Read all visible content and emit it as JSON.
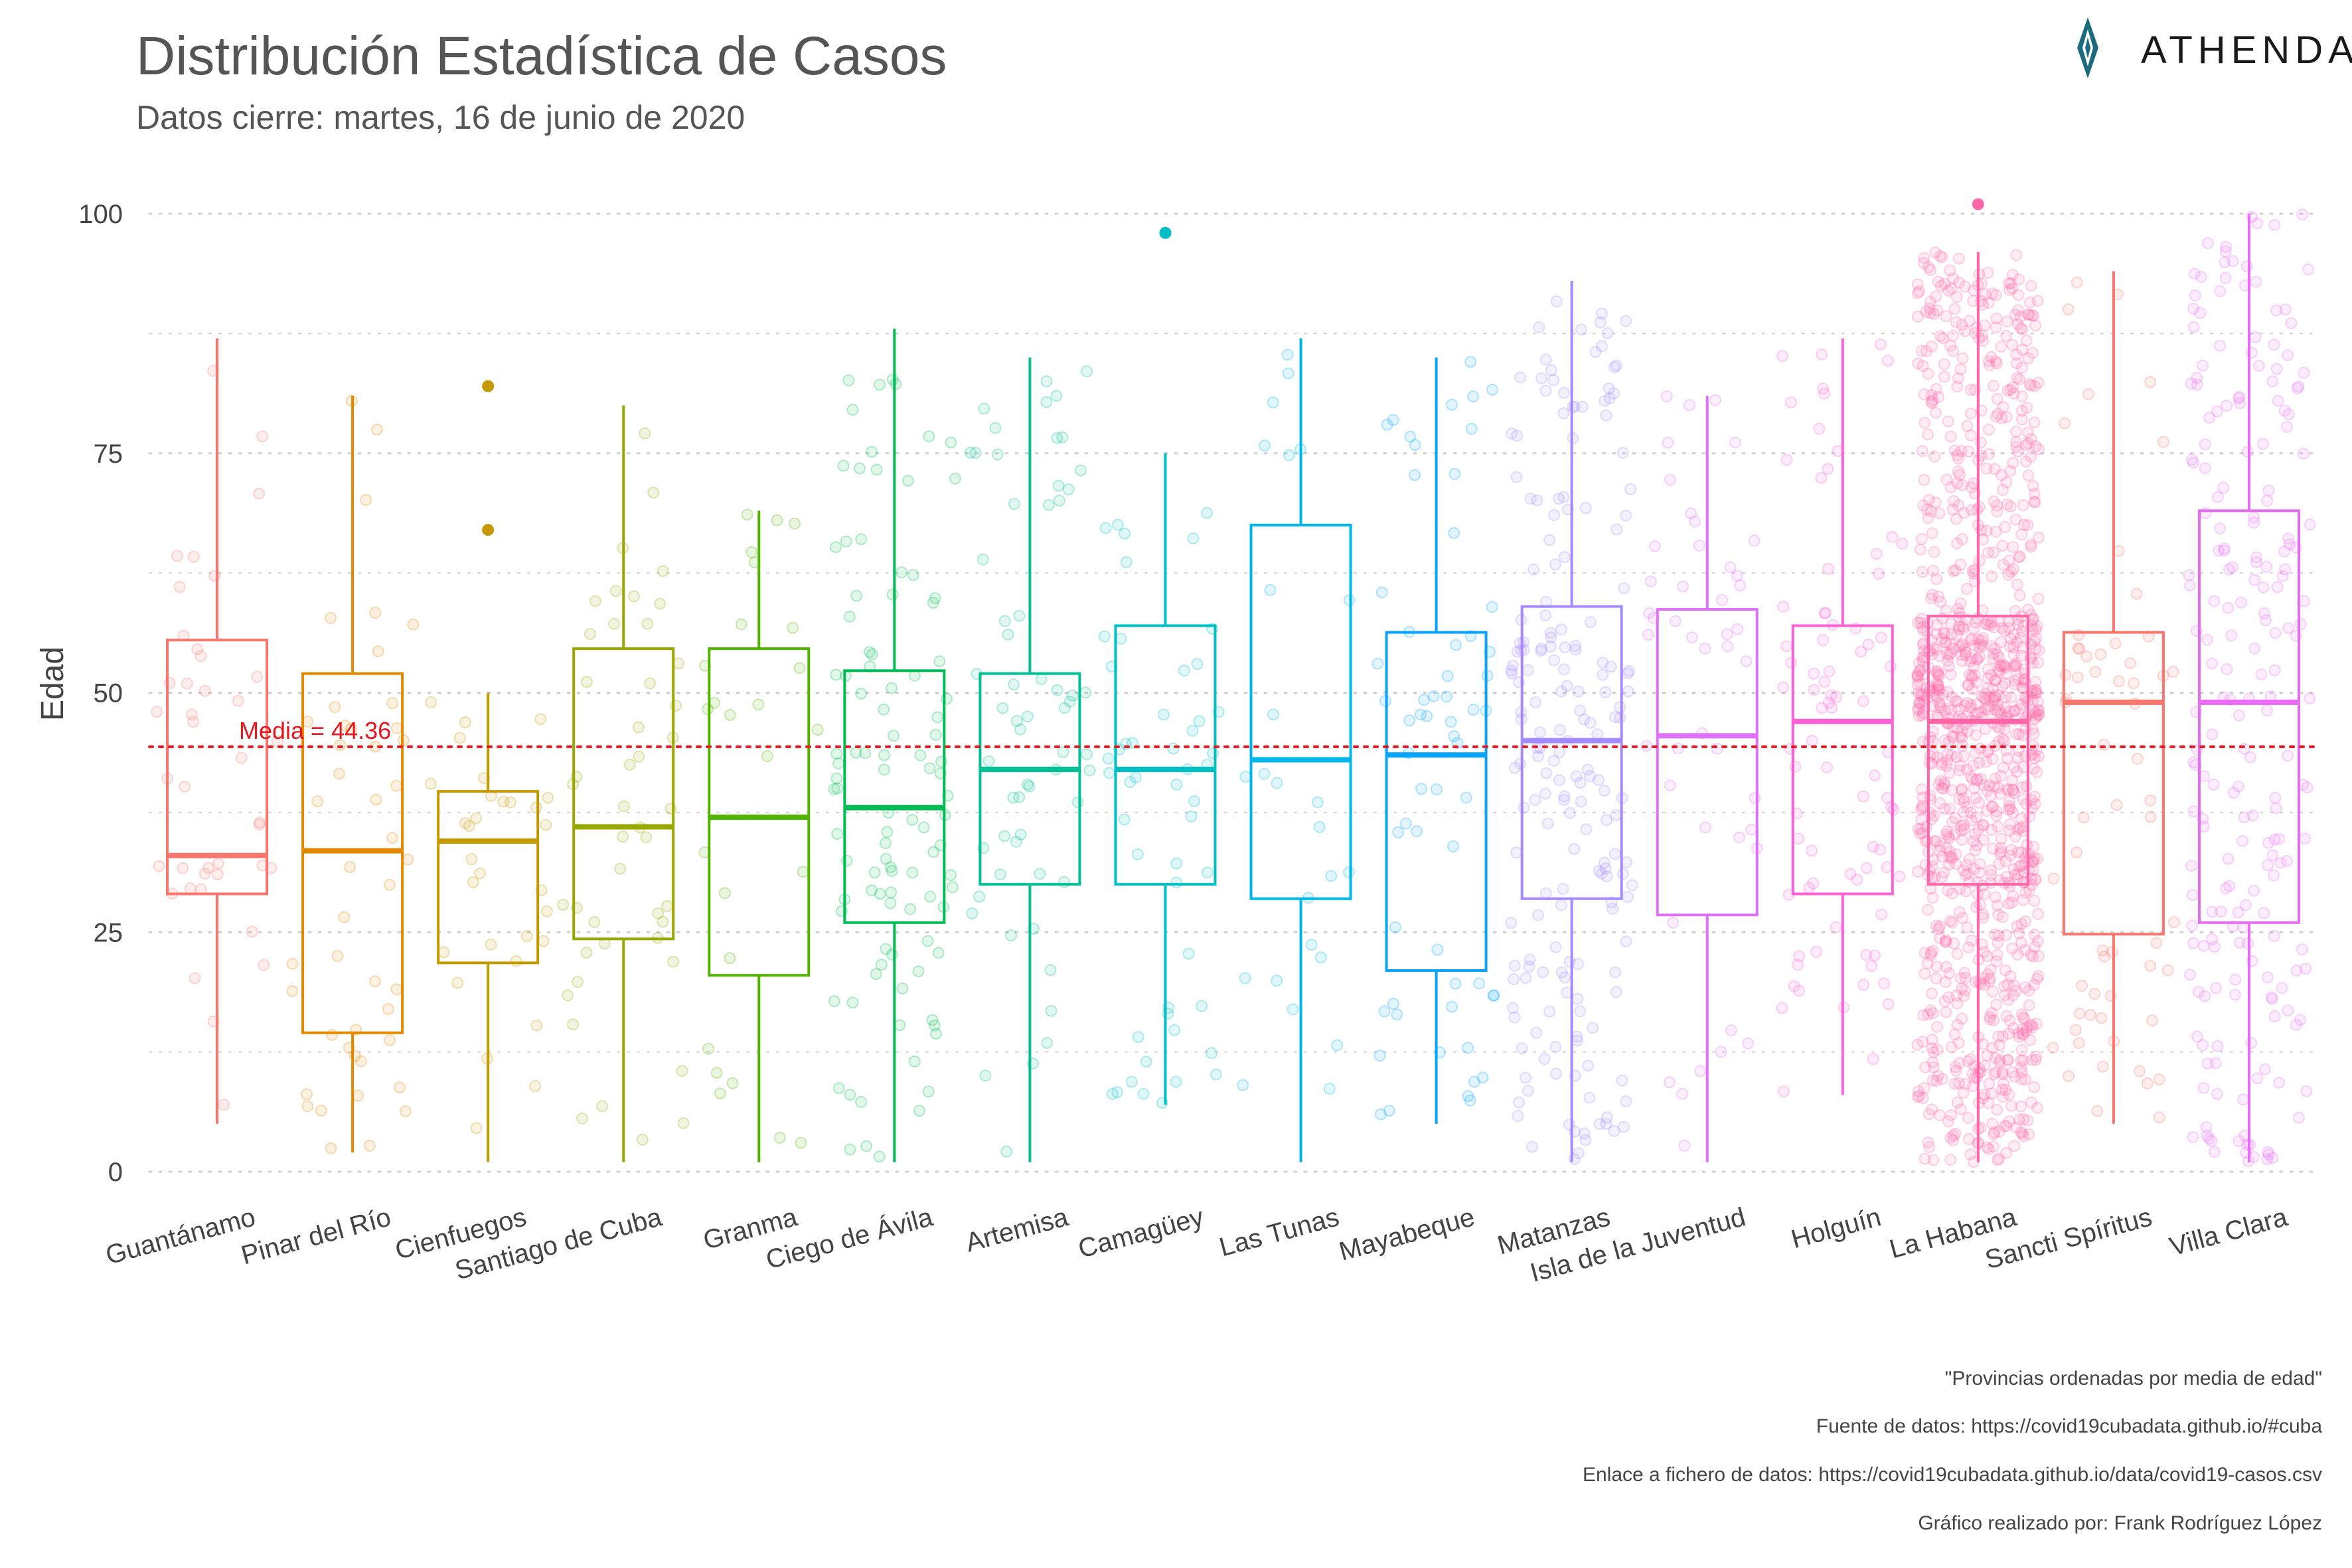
{
  "header": {
    "title": "Distribución Estadística de Casos",
    "subtitle": "Datos cierre: martes, 16 de junio de 2020"
  },
  "logo": {
    "text": "ATHENDAT",
    "color": "#1a6b7c"
  },
  "captions": [
    "\"Provincias ordenadas por media de edad\"",
    "Fuente de datos: https://covid19cubadata.github.io/#cuba",
    "Enlace a fichero de datos: https://covid19cubadata.github.io/data/covid19-casos.csv",
    "Gráfico realizado por: Frank Rodríguez López"
  ],
  "chart_data": {
    "type": "boxplot",
    "ylabel": "Edad",
    "ylim": [
      0,
      102
    ],
    "yticks": [
      0,
      25,
      50,
      75,
      100
    ],
    "grid": true,
    "mean_line": {
      "value": 44.36,
      "label": "Media = 44.36",
      "color": "#e8141c"
    },
    "categories": [
      "Guantánamo",
      "Pinar del Río",
      "Cienfuegos",
      "Santiago de Cuba",
      "Granma",
      "Ciego de Ávila",
      "Artemisa",
      "Camagüey",
      "Las Tunas",
      "Mayabeque",
      "Matanzas",
      "Isla de la Juventud",
      "Holguín",
      "La Habana",
      "Sancti Spíritus",
      "Villa Clara"
    ],
    "series": [
      {
        "name": "Guantánamo",
        "color": "#F8766D",
        "min": 5,
        "q1": 29,
        "median": 33,
        "q3": 55.5,
        "max": 87,
        "outliers": [],
        "n": 40
      },
      {
        "name": "Pinar del Río",
        "color": "#E38900",
        "min": 2,
        "q1": 14.5,
        "median": 33.5,
        "q3": 52,
        "max": 81,
        "outliers": [],
        "n": 45
      },
      {
        "name": "Cienfuegos",
        "color": "#C49A00",
        "min": 1,
        "q1": 21.8,
        "median": 34.5,
        "q3": 39.7,
        "max": 50,
        "outliers": [
          67,
          82
        ],
        "n": 30
      },
      {
        "name": "Santiago de Cuba",
        "color": "#99A800",
        "min": 1,
        "q1": 24.3,
        "median": 36,
        "q3": 54.6,
        "max": 80,
        "outliers": [],
        "n": 45
      },
      {
        "name": "Granma",
        "color": "#53B400",
        "min": 1,
        "q1": 20.5,
        "median": 37,
        "q3": 54.6,
        "max": 69,
        "outliers": [],
        "n": 25
      },
      {
        "name": "Ciego de Ávila",
        "color": "#00BC56",
        "min": 1,
        "q1": 26,
        "median": 38,
        "q3": 52.3,
        "max": 88,
        "outliers": [],
        "n": 100
      },
      {
        "name": "Artemisa",
        "color": "#00C094",
        "min": 1,
        "q1": 30,
        "median": 42,
        "q3": 52,
        "max": 85,
        "outliers": [],
        "n": 60
      },
      {
        "name": "Camagüey",
        "color": "#00BFC4",
        "min": 7,
        "q1": 30,
        "median": 42,
        "q3": 57,
        "max": 75,
        "outliers": [
          98
        ],
        "n": 50
      },
      {
        "name": "Las Tunas",
        "color": "#00B6EB",
        "min": 1,
        "q1": 28.5,
        "median": 43,
        "q3": 67.5,
        "max": 87,
        "outliers": [],
        "n": 25
      },
      {
        "name": "Mayabeque",
        "color": "#06A4FF",
        "min": 5,
        "q1": 21,
        "median": 43.5,
        "q3": 56.3,
        "max": 85,
        "outliers": [],
        "n": 60
      },
      {
        "name": "Matanzas",
        "color": "#A58AFF",
        "min": 1,
        "q1": 28.5,
        "median": 45,
        "q3": 59,
        "max": 93,
        "outliers": [],
        "n": 190
      },
      {
        "name": "Isla de la Juventud",
        "color": "#DF70F8",
        "min": 1,
        "q1": 26.8,
        "median": 45.5,
        "q3": 58.7,
        "max": 81,
        "outliers": [],
        "n": 45
      },
      {
        "name": "Holguín",
        "color": "#FB61D7",
        "min": 8,
        "q1": 29,
        "median": 47,
        "q3": 57,
        "max": 87,
        "outliers": [],
        "n": 80
      },
      {
        "name": "La Habana",
        "color": "#FF66A8",
        "min": 1,
        "q1": 30,
        "median": 47,
        "q3": 58,
        "max": 96,
        "outliers": [
          101
        ],
        "n": 1100
      },
      {
        "name": "Sancti Spíritus",
        "color": "#F8766D",
        "min": 5,
        "q1": 24.8,
        "median": 49,
        "q3": 56.3,
        "max": 94,
        "outliers": [],
        "n": 60
      },
      {
        "name": "Villa Clara",
        "color": "#E76BF3",
        "min": 1,
        "q1": 26,
        "median": 49,
        "q3": 69,
        "max": 100,
        "outliers": [],
        "n": 210
      }
    ]
  }
}
